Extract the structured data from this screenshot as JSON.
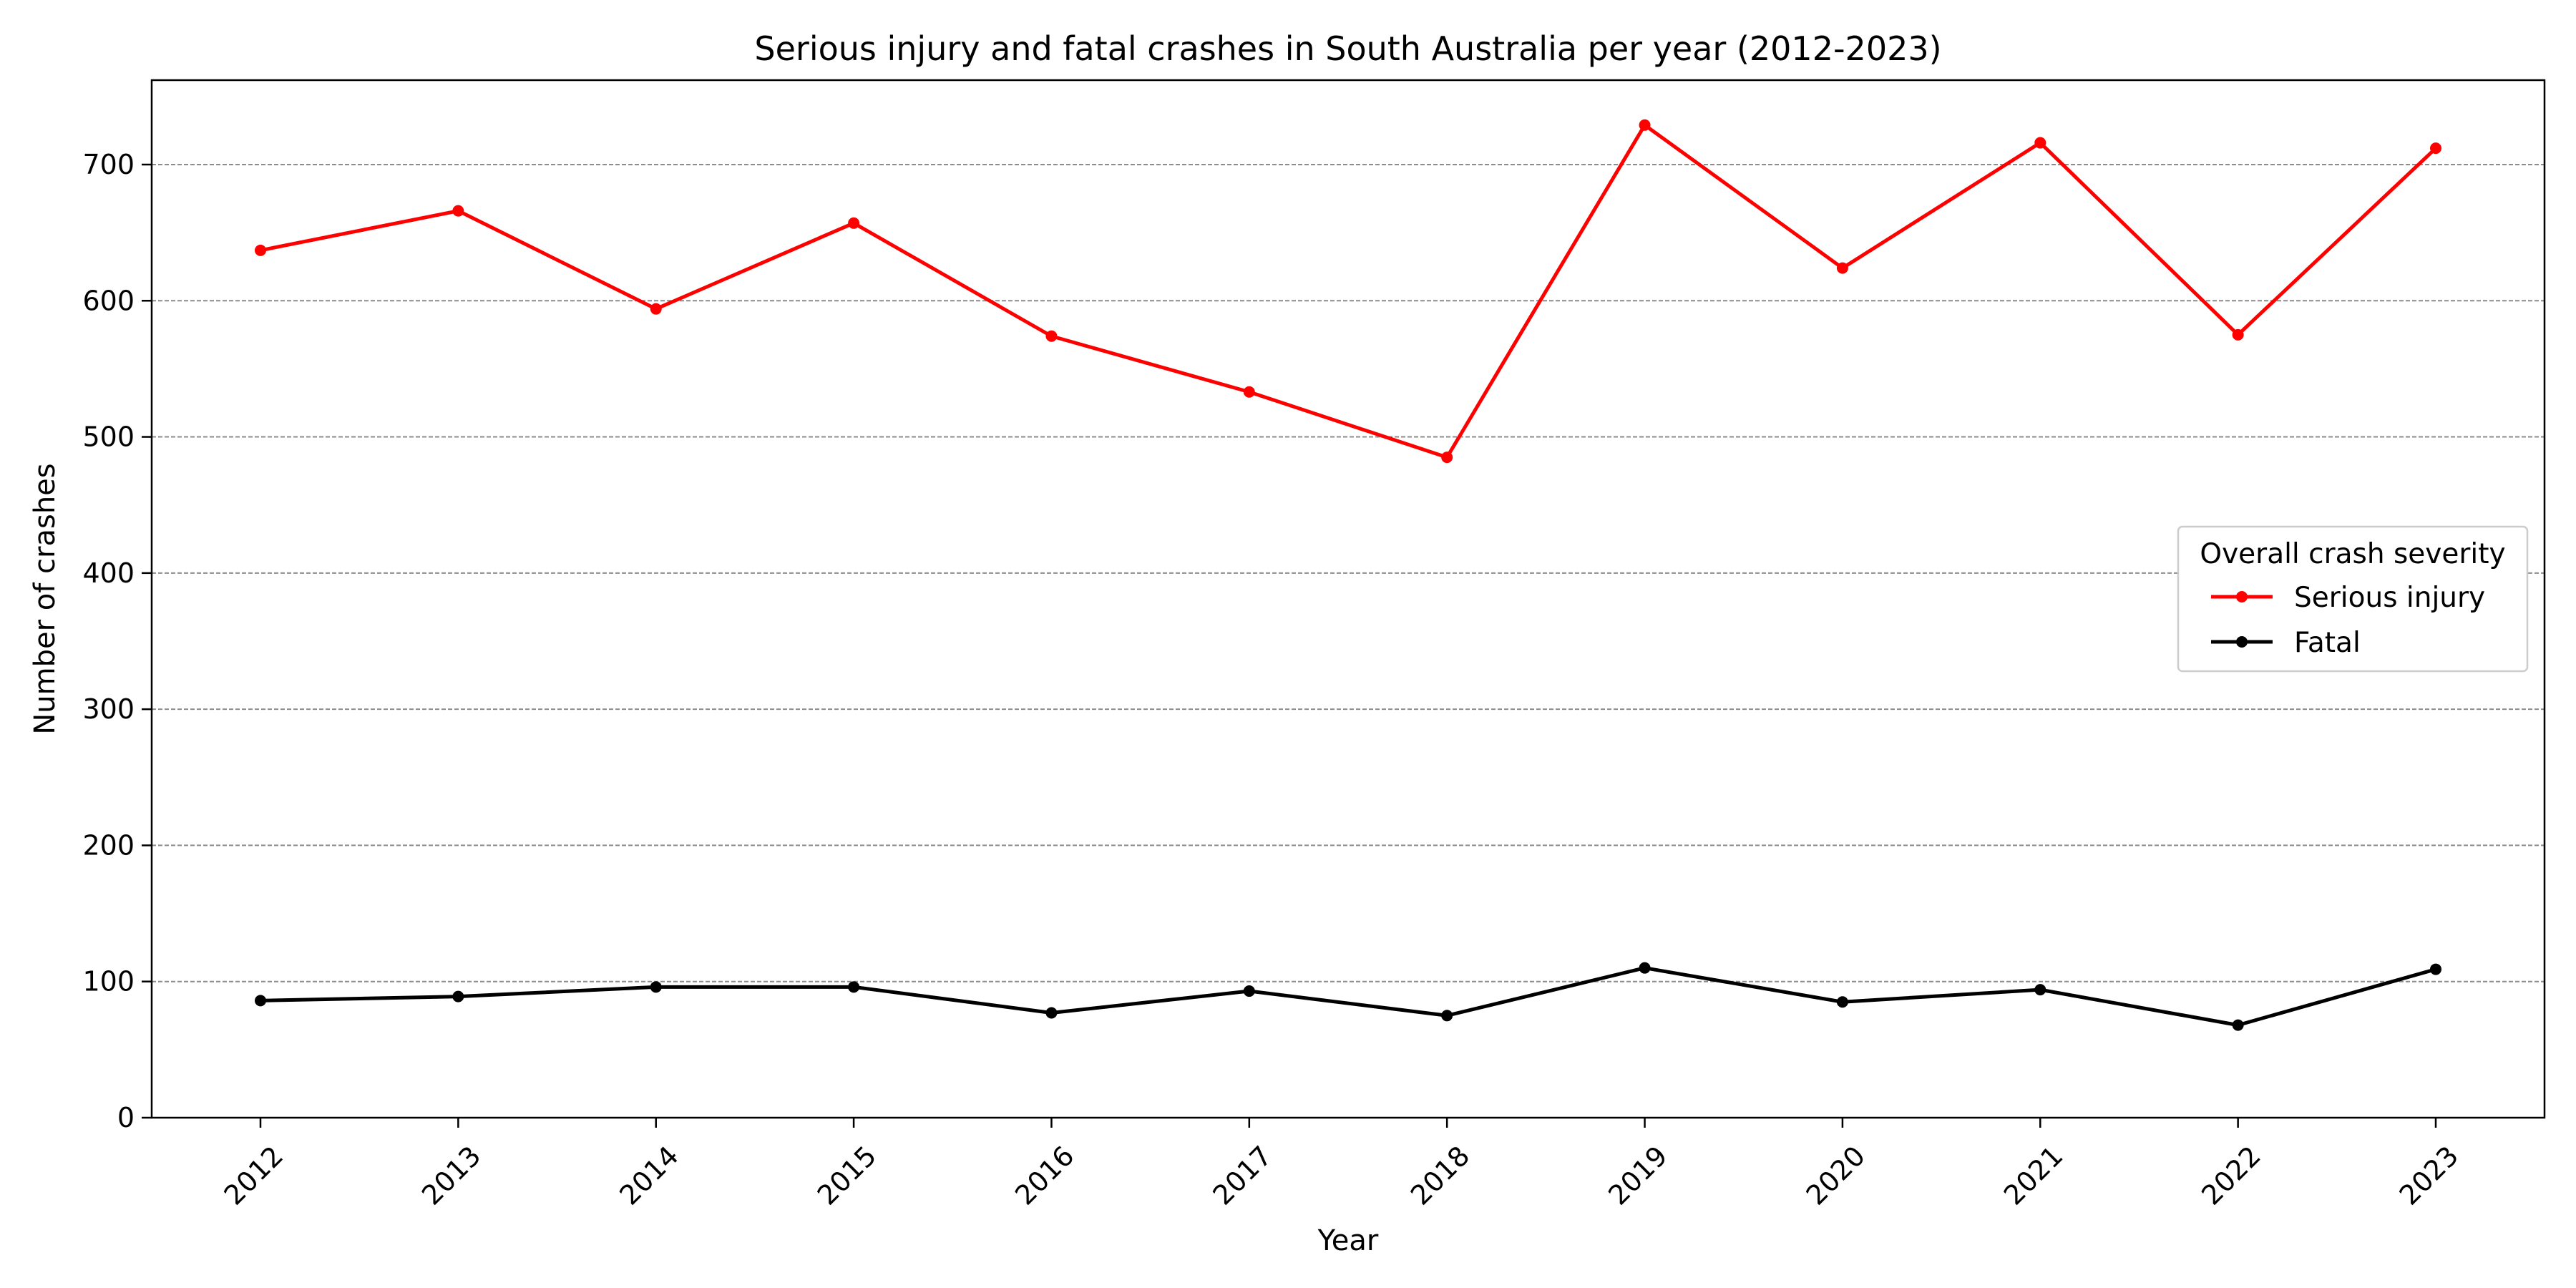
{
  "chart_data": {
    "type": "line",
    "title": "Serious injury and fatal crashes in South Australia per year (2012-2023)",
    "xlabel": "Year",
    "ylabel": "Number of crashes",
    "categories": [
      "2012",
      "2013",
      "2014",
      "2015",
      "2016",
      "2017",
      "2018",
      "2019",
      "2020",
      "2021",
      "2022",
      "2023"
    ],
    "ylim": [
      0,
      762
    ],
    "yticks": [
      0,
      100,
      200,
      300,
      400,
      500,
      600,
      700
    ],
    "grid": "horizontal dashed",
    "legend": {
      "title": "Overall crash severity",
      "placement": "center-right"
    },
    "series": [
      {
        "name": "Serious injury",
        "color": "#ff0000",
        "values": [
          637,
          666,
          594,
          657,
          574,
          533,
          485,
          729,
          624,
          716,
          575,
          712
        ]
      },
      {
        "name": "Fatal",
        "color": "#000000",
        "values": [
          86,
          89,
          96,
          96,
          77,
          93,
          75,
          110,
          85,
          94,
          68,
          109
        ]
      }
    ]
  }
}
